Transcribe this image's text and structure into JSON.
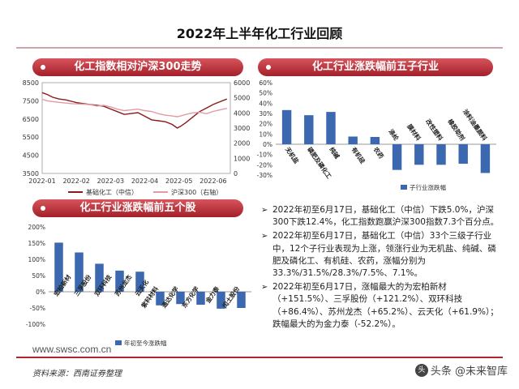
{
  "page_title": "2022年上半年化工行业回顾",
  "sections": {
    "trend": "化工指数相对沪深300走势",
    "subsector": "化工行业涨跌幅前五子行业",
    "stocks": "化工行业涨跌幅前五个股"
  },
  "bullets": [
    "2022年初至6月17日，基础化工（中信）下跌5.0%，沪深300下跌12.4%，化工指数跑赢沪深300指数7.3个百分点。",
    "2022年初至6月17日，基础化工（中信）33个三级子行业中，12个子行业表现为上涨，领涨行业为无机盐、纯碱、磷肥及磷化工、有机硅、农药，涨幅分别为33.3%/31.5%/28.3%/7.5%、7.1%。",
    "2022年初至6月17日，涨幅最大的为宏柏新材（+151.5%）、三孚股份（+121.2%）、双环科技（+86.4%）、苏州龙杰（+65.2%）、云天化（+61.9%）；跌幅最大的为金力泰（-52.2%）。"
  ],
  "bullet_mark": "➢",
  "footer": {
    "site": "www.swsc.com.cn",
    "source": "资料来源：西南证券整理",
    "watermark": "头条 @未来智库",
    "watermark_logo": "头"
  },
  "chart_data": [
    {
      "type": "line",
      "x_ticks": [
        "2022-01",
        "2022-02",
        "2022-03",
        "2022-04",
        "2022-05",
        "2022-06"
      ],
      "y_left_ticks": [
        "3500",
        "4500",
        "5500",
        "6500",
        "7500",
        "8500"
      ],
      "y_left_lim": [
        3500,
        8500
      ],
      "y_right_ticks": [
        "0",
        "1000",
        "2000",
        "3000",
        "4000",
        "5000",
        "6000"
      ],
      "y_right_lim": [
        0,
        6000
      ],
      "series": [
        {
          "name": "基础化工（中信）",
          "axis": "left",
          "color": "#8c1a1a",
          "x": [
            0,
            0.15,
            0.3,
            0.5,
            0.7,
            0.9,
            1.0,
            1.2,
            1.4,
            1.6,
            1.8,
            2.0,
            2.2,
            2.4,
            2.6,
            2.8,
            3.0,
            3.2,
            3.4,
            3.6,
            3.8,
            3.95,
            4.05,
            4.2,
            4.4,
            4.6,
            4.8,
            5.0,
            5.2,
            5.4
          ],
          "y": [
            7950,
            7850,
            7700,
            7600,
            7550,
            7450,
            7400,
            7350,
            7300,
            7250,
            7200,
            7050,
            6900,
            6750,
            6800,
            6850,
            6650,
            6450,
            6400,
            6350,
            6200,
            6000,
            6100,
            6300,
            6600,
            6900,
            7100,
            7300,
            7450,
            7600
          ]
        },
        {
          "name": "沪深300（右轴）",
          "axis": "right",
          "color": "#e39aa5",
          "x": [
            0,
            0.15,
            0.3,
            0.5,
            0.7,
            0.9,
            1.0,
            1.2,
            1.4,
            1.6,
            1.8,
            2.0,
            2.2,
            2.4,
            2.6,
            2.8,
            3.0,
            3.2,
            3.4,
            3.6,
            3.8,
            3.95,
            4.05,
            4.2,
            4.4,
            4.6,
            4.8,
            5.0,
            5.2,
            5.4
          ],
          "y": [
            4900,
            4800,
            4750,
            4700,
            4650,
            4600,
            4600,
            4580,
            4550,
            4450,
            4500,
            4400,
            4250,
            4150,
            4200,
            4250,
            4150,
            4100,
            3950,
            3850,
            3800,
            3750,
            3800,
            3900,
            4000,
            4050,
            3950,
            4100,
            4200,
            4300
          ]
        }
      ]
    },
    {
      "type": "bar",
      "categories": [
        "无机盐",
        "磷肥及磷化工",
        "纯碱",
        "有机硅",
        "农药",
        "涤纶",
        "膜材料",
        "改性塑料",
        "橡胶助剂",
        "涂料油墨颜料"
      ],
      "values": [
        33.3,
        28.3,
        31.5,
        7.5,
        7.1,
        -25.0,
        -20.0,
        -20.0,
        -19.0,
        -28.0
      ],
      "y_ticks": [
        "-30%",
        "-20%",
        "-10%",
        "0%",
        "10%",
        "20%",
        "30%",
        "40%",
        "50%",
        "60%"
      ],
      "ylim": [
        -30,
        60
      ],
      "legend": "子行业涨跌幅",
      "color": "#3c68b0"
    },
    {
      "type": "bar",
      "categories": [
        "宏柏新材",
        "三孚股份",
        "双环科技",
        "苏州龙杰",
        "云天化",
        "紫科材料",
        "通达化学",
        "东方化学",
        "金力泰",
        "闰土股份"
      ],
      "values": [
        151.5,
        121.2,
        86.4,
        65.2,
        61.9,
        -42.0,
        -38.0,
        -40.0,
        -52.2,
        -50.0
      ],
      "y_ticks": [
        "-100%",
        "-50%",
        "0%",
        "50%",
        "100%",
        "150%",
        "200%"
      ],
      "ylim": [
        -100,
        200
      ],
      "legend": "年初至今涨跌幅",
      "color": "#3c68b0"
    }
  ]
}
